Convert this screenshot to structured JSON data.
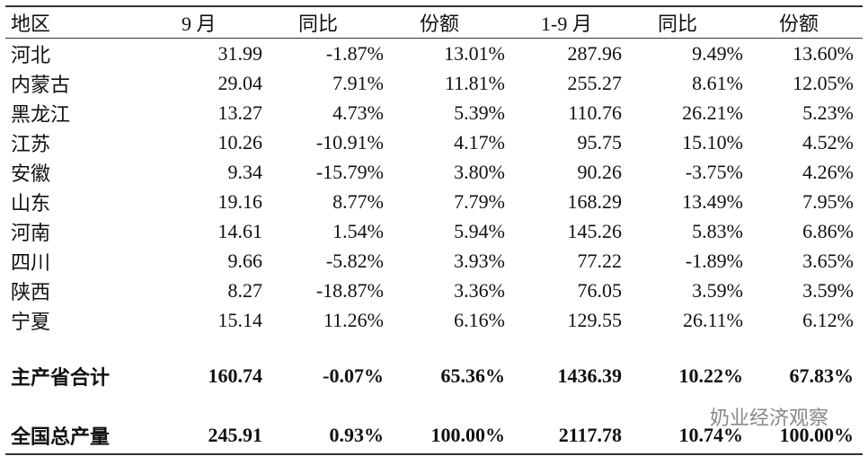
{
  "table": {
    "header": [
      "地区",
      "9 月",
      "同比",
      "份额",
      "1-9 月",
      "同比",
      "份额"
    ],
    "rows": [
      [
        "河北",
        "31.99",
        "-1.87%",
        "13.01%",
        "287.96",
        "9.49%",
        "13.60%"
      ],
      [
        "内蒙古",
        "29.04",
        "7.91%",
        "11.81%",
        "255.27",
        "8.61%",
        "12.05%"
      ],
      [
        "黑龙江",
        "13.27",
        "4.73%",
        "5.39%",
        "110.76",
        "26.21%",
        "5.23%"
      ],
      [
        "江苏",
        "10.26",
        "-10.91%",
        "4.17%",
        "95.75",
        "15.10%",
        "4.52%"
      ],
      [
        "安徽",
        "9.34",
        "-15.79%",
        "3.80%",
        "90.26",
        "-3.75%",
        "4.26%"
      ],
      [
        "山东",
        "19.16",
        "8.77%",
        "7.79%",
        "168.29",
        "13.49%",
        "7.95%"
      ],
      [
        "河南",
        "14.61",
        "1.54%",
        "5.94%",
        "145.26",
        "5.83%",
        "6.86%"
      ],
      [
        "四川",
        "9.66",
        "-5.82%",
        "3.93%",
        "77.22",
        "-1.89%",
        "3.65%"
      ],
      [
        "陕西",
        "8.27",
        "-18.87%",
        "3.36%",
        "76.05",
        "3.59%",
        "3.59%"
      ],
      [
        "宁夏",
        "15.14",
        "11.26%",
        "6.16%",
        "129.55",
        "26.11%",
        "6.12%"
      ]
    ],
    "totals": [
      [
        "主产省合计",
        "160.74",
        "-0.07%",
        "65.36%",
        "1436.39",
        "10.22%",
        "67.83%"
      ],
      [
        "全国总产量",
        "245.91",
        "0.93%",
        "100.00%",
        "2117.78",
        "10.74%",
        "100.00%"
      ]
    ]
  },
  "watermark": "奶业经济观察"
}
